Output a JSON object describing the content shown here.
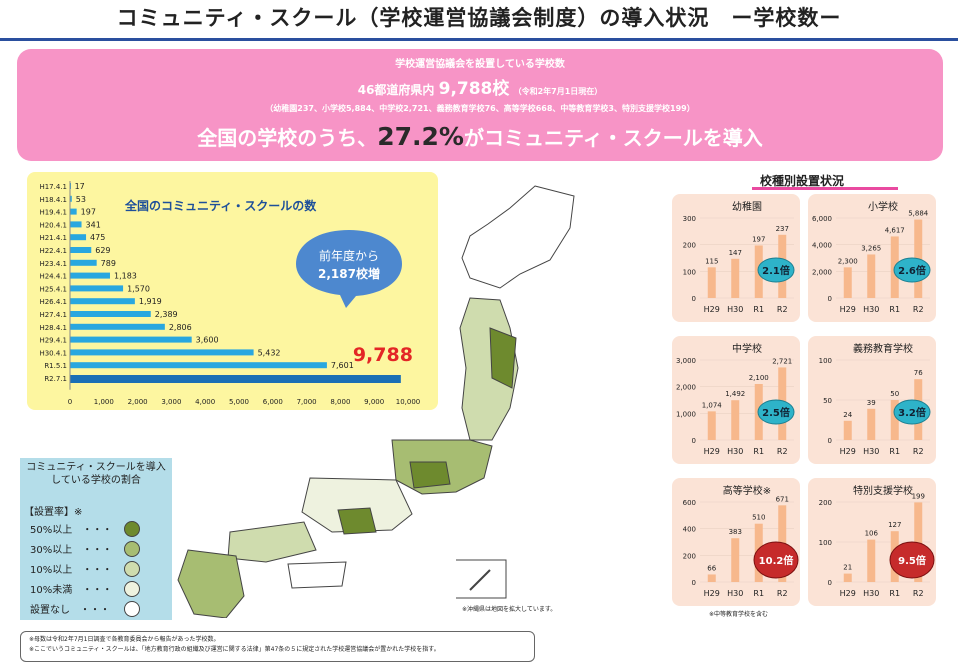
{
  "title": "コミュニティ・スクール（学校運営協議会制度）の導入状況　ー学校数ー",
  "banner": {
    "line1": "学校運営協議会を設置している学校数",
    "line2_prefix": "46都道府県内",
    "line2_total": "9,788校",
    "line2_date": "（令和2年7月1日現在）",
    "line3": "（幼稚園237、小学校5,884、中学校2,721、義務教育学校76、高等学校668、中等教育学校3、特別支援学校199）",
    "line4_prefix": "全国の学校のうち、",
    "line4_pct": "27.2%",
    "line4_suffix": "がコミュニティ・スクールを導入"
  },
  "bubble": {
    "line1": "前年度から",
    "line2": "2,187校増"
  },
  "legend": {
    "title": "コミュニティ・スクールを導入している学校の割合",
    "label": "【設置率】※",
    "items": [
      {
        "label": "50%以上　・・・",
        "color": "#6e8a2e"
      },
      {
        "label": "30%以上　・・・",
        "color": "#a7bd72"
      },
      {
        "label": "10%以上　・・・",
        "color": "#cfdcae"
      },
      {
        "label": "10%未満　・・・",
        "color": "#eef2df"
      },
      {
        "label": "設置なし　・・・",
        "color": "#ffffff"
      }
    ]
  },
  "map_note": "※沖縄県は地図を拡大しています。",
  "footnotes": [
    "※母数は令和2年7月1日調査で各教育委員会から報告があった学校数。",
    "※ここでいうコミュニティ・スクールは、「地方教育行政の組織及び運営に関する法律」第47条の５に規定された学校運営協議会が置かれた学校を指す。"
  ],
  "type_section_title": "校種別設置状況",
  "mini_note": "※中等教育学校を含む",
  "colors": {
    "bar": "#29a7df",
    "bar_latest": "#1b6fb5",
    "mini_bar": "#f7b88c",
    "badge_blue": "#2eb3c9",
    "badge_red": "#c62b2b"
  },
  "chart_data": [
    {
      "type": "bar",
      "orientation": "horizontal",
      "title": "全国のコミュニティ・スクールの数",
      "categories": [
        "H17.4.1",
        "H18.4.1",
        "H19.4.1",
        "H20.4.1",
        "H21.4.1",
        "H22.4.1",
        "H23.4.1",
        "H24.4.1",
        "H25.4.1",
        "H26.4.1",
        "H27.4.1",
        "H28.4.1",
        "H29.4.1",
        "H30.4.1",
        "R1.5.1",
        "R2.7.1"
      ],
      "values": [
        17,
        53,
        197,
        341,
        475,
        629,
        789,
        1183,
        1570,
        1919,
        2389,
        2806,
        3600,
        5432,
        7601,
        9788
      ],
      "value_labels": [
        "17",
        "53",
        "197",
        "341",
        "475",
        "629",
        "789",
        "1,183",
        "1,570",
        "1,919",
        "2,389",
        "2,806",
        "3,600",
        "5,432",
        "7,601",
        "9,788"
      ],
      "xlim": [
        0,
        10000
      ],
      "ticks": [
        "0",
        "1,000",
        "2,000",
        "3,000",
        "4,000",
        "5,000",
        "6,000",
        "7,000",
        "8,000",
        "9,000",
        "10,000"
      ]
    },
    {
      "type": "bar",
      "title": "幼稚園",
      "categories": [
        "H29",
        "H30",
        "R1",
        "R2"
      ],
      "values": [
        115,
        147,
        197,
        237
      ],
      "value_labels": [
        "115",
        "147",
        "197",
        "237"
      ],
      "ylim": [
        0,
        300
      ],
      "ticks": [
        "0",
        "100",
        "200",
        "300"
      ],
      "badge": "2.1倍"
    },
    {
      "type": "bar",
      "title": "小学校",
      "categories": [
        "H29",
        "H30",
        "R1",
        "R2"
      ],
      "values": [
        2300,
        3265,
        4617,
        5884
      ],
      "value_labels": [
        "2,300",
        "3,265",
        "4,617",
        "5,884"
      ],
      "ylim": [
        0,
        6000
      ],
      "ticks": [
        "0",
        "2,000",
        "4,000",
        "6,000"
      ],
      "badge": "2.6倍"
    },
    {
      "type": "bar",
      "title": "中学校",
      "categories": [
        "H29",
        "H30",
        "R1",
        "R2"
      ],
      "values": [
        1074,
        1492,
        2100,
        2721
      ],
      "value_labels": [
        "1,074",
        "1,492",
        "2,100",
        "2,721"
      ],
      "ylim": [
        0,
        3000
      ],
      "ticks": [
        "0",
        "1,000",
        "2,000",
        "3,000"
      ],
      "badge": "2.5倍"
    },
    {
      "type": "bar",
      "title": "義務教育学校",
      "categories": [
        "H29",
        "H30",
        "R1",
        "R2"
      ],
      "values": [
        24,
        39,
        50,
        76
      ],
      "value_labels": [
        "24",
        "39",
        "50",
        "76"
      ],
      "ylim": [
        0,
        100
      ],
      "ticks": [
        "0",
        "50",
        "100"
      ],
      "badge": "3.2倍"
    },
    {
      "type": "bar",
      "title": "高等学校※",
      "categories": [
        "H29",
        "H30",
        "R1",
        "R2"
      ],
      "values": [
        66,
        383,
        510,
        671
      ],
      "value_labels": [
        "66",
        "383",
        "510",
        "671"
      ],
      "ylim": [
        0,
        700
      ],
      "ticks": [
        "0",
        "200",
        "400",
        "600"
      ],
      "badge": "10.2倍"
    },
    {
      "type": "bar",
      "title": "特別支援学校",
      "categories": [
        "H29",
        "H30",
        "R1",
        "R2"
      ],
      "values": [
        21,
        106,
        127,
        199
      ],
      "value_labels": [
        "21",
        "106",
        "127",
        "199"
      ],
      "ylim": [
        0,
        200
      ],
      "ticks": [
        "0",
        "100",
        "200"
      ],
      "badge": "9.5倍"
    }
  ]
}
